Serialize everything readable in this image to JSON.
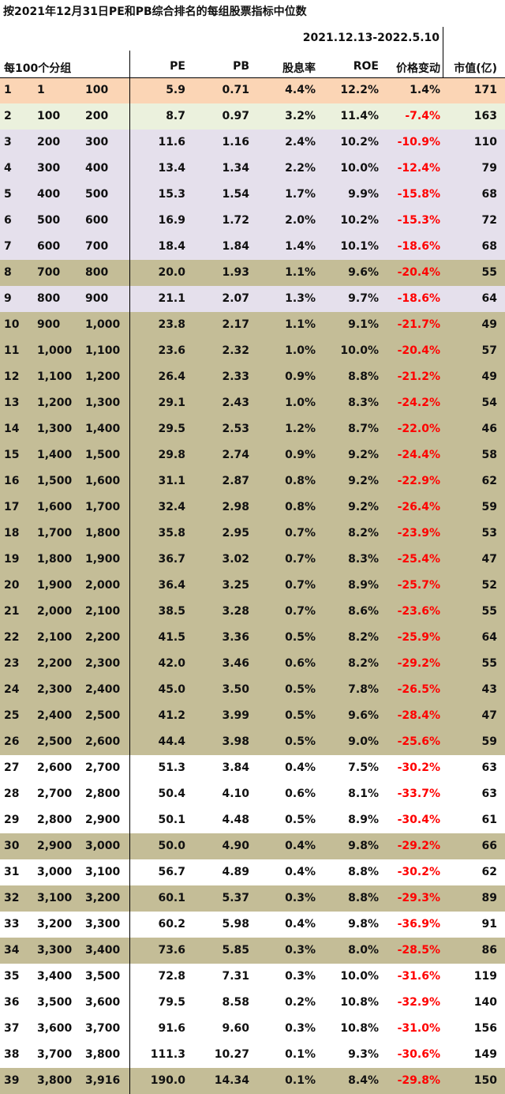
{
  "title": "按2021年12月31日PE和PB综合排名的每组股票指标中位数",
  "date_range": "2021.12.13-2022.5.10",
  "headers": {
    "group": "每100个分组",
    "pe": "PE",
    "pb": "PB",
    "dividend_yield": "股息率",
    "roe": "ROE",
    "price_change": "价格变动",
    "market_cap": "市值(亿)"
  },
  "colors": {
    "orange": "#fbd5b5",
    "green": "#ebf1dd",
    "lavender": "#e5e0ec",
    "tan": "#c4bd97",
    "white": "#ffffff",
    "negative": "#ff0000"
  },
  "chart_data": {
    "type": "table",
    "columns": [
      "",
      "",
      "",
      "PE",
      "PB",
      "股息率",
      "ROE",
      "价格变动",
      "市值(亿)"
    ],
    "rows": [
      {
        "idx": "1",
        "from": "1",
        "to": "100",
        "pe": "5.9",
        "pb": "0.71",
        "yield": "4.4%",
        "roe": "12.2%",
        "chg": "1.4%",
        "cap": "171",
        "fill": "orange"
      },
      {
        "idx": "2",
        "from": "100",
        "to": "200",
        "pe": "8.7",
        "pb": "0.97",
        "yield": "3.2%",
        "roe": "11.4%",
        "chg": "-7.4%",
        "cap": "163",
        "fill": "green"
      },
      {
        "idx": "3",
        "from": "200",
        "to": "300",
        "pe": "11.6",
        "pb": "1.16",
        "yield": "2.4%",
        "roe": "10.2%",
        "chg": "-10.9%",
        "cap": "110",
        "fill": "lavender"
      },
      {
        "idx": "4",
        "from": "300",
        "to": "400",
        "pe": "13.4",
        "pb": "1.34",
        "yield": "2.2%",
        "roe": "10.0%",
        "chg": "-12.4%",
        "cap": "79",
        "fill": "lavender"
      },
      {
        "idx": "5",
        "from": "400",
        "to": "500",
        "pe": "15.3",
        "pb": "1.54",
        "yield": "1.7%",
        "roe": "9.9%",
        "chg": "-15.8%",
        "cap": "68",
        "fill": "lavender"
      },
      {
        "idx": "6",
        "from": "500",
        "to": "600",
        "pe": "16.9",
        "pb": "1.72",
        "yield": "2.0%",
        "roe": "10.2%",
        "chg": "-15.3%",
        "cap": "72",
        "fill": "lavender"
      },
      {
        "idx": "7",
        "from": "600",
        "to": "700",
        "pe": "18.4",
        "pb": "1.84",
        "yield": "1.4%",
        "roe": "10.1%",
        "chg": "-18.6%",
        "cap": "68",
        "fill": "lavender"
      },
      {
        "idx": "8",
        "from": "700",
        "to": "800",
        "pe": "20.0",
        "pb": "1.93",
        "yield": "1.1%",
        "roe": "9.6%",
        "chg": "-20.4%",
        "cap": "55",
        "fill": "tan"
      },
      {
        "idx": "9",
        "from": "800",
        "to": "900",
        "pe": "21.1",
        "pb": "2.07",
        "yield": "1.3%",
        "roe": "9.7%",
        "chg": "-18.6%",
        "cap": "64",
        "fill": "lavender"
      },
      {
        "idx": "10",
        "from": "900",
        "to": "1,000",
        "pe": "23.8",
        "pb": "2.17",
        "yield": "1.1%",
        "roe": "9.1%",
        "chg": "-21.7%",
        "cap": "49",
        "fill": "tan"
      },
      {
        "idx": "11",
        "from": "1,000",
        "to": "1,100",
        "pe": "23.6",
        "pb": "2.32",
        "yield": "1.0%",
        "roe": "10.0%",
        "chg": "-20.4%",
        "cap": "57",
        "fill": "tan"
      },
      {
        "idx": "12",
        "from": "1,100",
        "to": "1,200",
        "pe": "26.4",
        "pb": "2.33",
        "yield": "0.9%",
        "roe": "8.8%",
        "chg": "-21.2%",
        "cap": "49",
        "fill": "tan"
      },
      {
        "idx": "13",
        "from": "1,200",
        "to": "1,300",
        "pe": "29.1",
        "pb": "2.43",
        "yield": "1.0%",
        "roe": "8.3%",
        "chg": "-24.2%",
        "cap": "54",
        "fill": "tan"
      },
      {
        "idx": "14",
        "from": "1,300",
        "to": "1,400",
        "pe": "29.5",
        "pb": "2.53",
        "yield": "1.2%",
        "roe": "8.7%",
        "chg": "-22.0%",
        "cap": "46",
        "fill": "tan"
      },
      {
        "idx": "15",
        "from": "1,400",
        "to": "1,500",
        "pe": "29.8",
        "pb": "2.74",
        "yield": "0.9%",
        "roe": "9.2%",
        "chg": "-24.4%",
        "cap": "58",
        "fill": "tan"
      },
      {
        "idx": "16",
        "from": "1,500",
        "to": "1,600",
        "pe": "31.1",
        "pb": "2.87",
        "yield": "0.8%",
        "roe": "9.2%",
        "chg": "-22.9%",
        "cap": "62",
        "fill": "tan"
      },
      {
        "idx": "17",
        "from": "1,600",
        "to": "1,700",
        "pe": "32.4",
        "pb": "2.98",
        "yield": "0.8%",
        "roe": "9.2%",
        "chg": "-26.4%",
        "cap": "59",
        "fill": "tan"
      },
      {
        "idx": "18",
        "from": "1,700",
        "to": "1,800",
        "pe": "35.8",
        "pb": "2.95",
        "yield": "0.7%",
        "roe": "8.2%",
        "chg": "-23.9%",
        "cap": "53",
        "fill": "tan"
      },
      {
        "idx": "19",
        "from": "1,800",
        "to": "1,900",
        "pe": "36.7",
        "pb": "3.02",
        "yield": "0.7%",
        "roe": "8.3%",
        "chg": "-25.4%",
        "cap": "47",
        "fill": "tan"
      },
      {
        "idx": "20",
        "from": "1,900",
        "to": "2,000",
        "pe": "36.4",
        "pb": "3.25",
        "yield": "0.7%",
        "roe": "8.9%",
        "chg": "-25.7%",
        "cap": "52",
        "fill": "tan"
      },
      {
        "idx": "21",
        "from": "2,000",
        "to": "2,100",
        "pe": "38.5",
        "pb": "3.28",
        "yield": "0.7%",
        "roe": "8.6%",
        "chg": "-23.6%",
        "cap": "55",
        "fill": "tan"
      },
      {
        "idx": "22",
        "from": "2,100",
        "to": "2,200",
        "pe": "41.5",
        "pb": "3.36",
        "yield": "0.5%",
        "roe": "8.2%",
        "chg": "-25.9%",
        "cap": "64",
        "fill": "tan"
      },
      {
        "idx": "23",
        "from": "2,200",
        "to": "2,300",
        "pe": "42.0",
        "pb": "3.46",
        "yield": "0.6%",
        "roe": "8.2%",
        "chg": "-29.2%",
        "cap": "55",
        "fill": "tan"
      },
      {
        "idx": "24",
        "from": "2,300",
        "to": "2,400",
        "pe": "45.0",
        "pb": "3.50",
        "yield": "0.5%",
        "roe": "7.8%",
        "chg": "-26.5%",
        "cap": "43",
        "fill": "tan"
      },
      {
        "idx": "25",
        "from": "2,400",
        "to": "2,500",
        "pe": "41.2",
        "pb": "3.99",
        "yield": "0.5%",
        "roe": "9.6%",
        "chg": "-28.4%",
        "cap": "47",
        "fill": "tan"
      },
      {
        "idx": "26",
        "from": "2,500",
        "to": "2,600",
        "pe": "44.4",
        "pb": "3.98",
        "yield": "0.5%",
        "roe": "9.0%",
        "chg": "-25.6%",
        "cap": "59",
        "fill": "tan"
      },
      {
        "idx": "27",
        "from": "2,600",
        "to": "2,700",
        "pe": "51.3",
        "pb": "3.84",
        "yield": "0.4%",
        "roe": "7.5%",
        "chg": "-30.2%",
        "cap": "63",
        "fill": "white"
      },
      {
        "idx": "28",
        "from": "2,700",
        "to": "2,800",
        "pe": "50.4",
        "pb": "4.10",
        "yield": "0.6%",
        "roe": "8.1%",
        "chg": "-33.7%",
        "cap": "63",
        "fill": "white"
      },
      {
        "idx": "29",
        "from": "2,800",
        "to": "2,900",
        "pe": "50.1",
        "pb": "4.48",
        "yield": "0.5%",
        "roe": "8.9%",
        "chg": "-30.4%",
        "cap": "61",
        "fill": "white"
      },
      {
        "idx": "30",
        "from": "2,900",
        "to": "3,000",
        "pe": "50.0",
        "pb": "4.90",
        "yield": "0.4%",
        "roe": "9.8%",
        "chg": "-29.2%",
        "cap": "66",
        "fill": "tan"
      },
      {
        "idx": "31",
        "from": "3,000",
        "to": "3,100",
        "pe": "56.7",
        "pb": "4.89",
        "yield": "0.4%",
        "roe": "8.8%",
        "chg": "-30.2%",
        "cap": "62",
        "fill": "white"
      },
      {
        "idx": "32",
        "from": "3,100",
        "to": "3,200",
        "pe": "60.1",
        "pb": "5.37",
        "yield": "0.3%",
        "roe": "8.8%",
        "chg": "-29.3%",
        "cap": "89",
        "fill": "tan"
      },
      {
        "idx": "33",
        "from": "3,200",
        "to": "3,300",
        "pe": "60.2",
        "pb": "5.98",
        "yield": "0.4%",
        "roe": "9.8%",
        "chg": "-36.9%",
        "cap": "91",
        "fill": "white"
      },
      {
        "idx": "34",
        "from": "3,300",
        "to": "3,400",
        "pe": "73.6",
        "pb": "5.85",
        "yield": "0.3%",
        "roe": "8.0%",
        "chg": "-28.5%",
        "cap": "86",
        "fill": "tan"
      },
      {
        "idx": "35",
        "from": "3,400",
        "to": "3,500",
        "pe": "72.8",
        "pb": "7.31",
        "yield": "0.3%",
        "roe": "10.0%",
        "chg": "-31.6%",
        "cap": "119",
        "fill": "white"
      },
      {
        "idx": "36",
        "from": "3,500",
        "to": "3,600",
        "pe": "79.5",
        "pb": "8.58",
        "yield": "0.2%",
        "roe": "10.8%",
        "chg": "-32.9%",
        "cap": "140",
        "fill": "white"
      },
      {
        "idx": "37",
        "from": "3,600",
        "to": "3,700",
        "pe": "91.6",
        "pb": "9.60",
        "yield": "0.3%",
        "roe": "10.8%",
        "chg": "-31.0%",
        "cap": "156",
        "fill": "white"
      },
      {
        "idx": "38",
        "from": "3,700",
        "to": "3,800",
        "pe": "111.3",
        "pb": "10.27",
        "yield": "0.1%",
        "roe": "9.3%",
        "chg": "-30.6%",
        "cap": "149",
        "fill": "white"
      },
      {
        "idx": "39",
        "from": "3,800",
        "to": "3,916",
        "pe": "190.0",
        "pb": "14.34",
        "yield": "0.1%",
        "roe": "8.4%",
        "chg": "-29.8%",
        "cap": "150",
        "fill": "tan"
      }
    ]
  }
}
